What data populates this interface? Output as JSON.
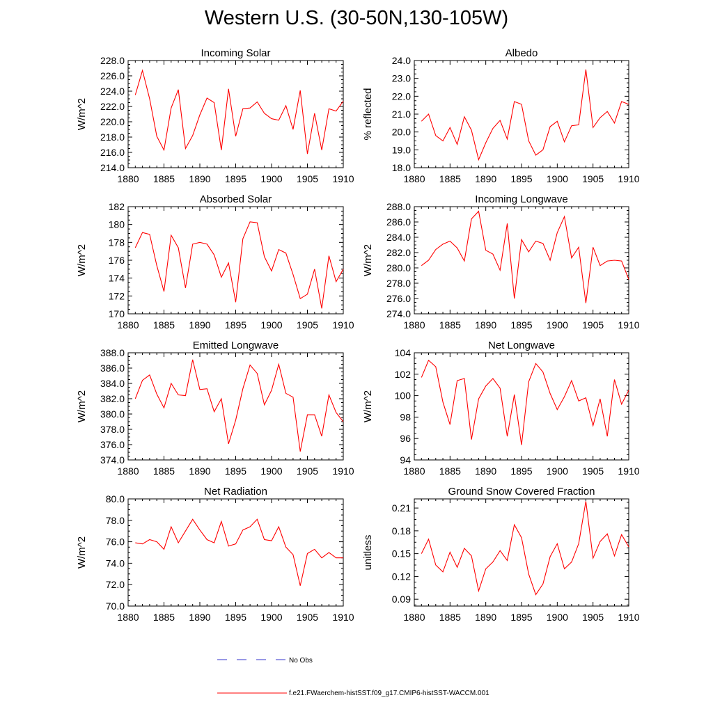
{
  "title": "Western U.S. (30-50N,130-105W)",
  "legend": {
    "entries": [
      {
        "label": "No Obs",
        "color": "#3333cc",
        "style": "dashed"
      },
      {
        "label": "f.e21.FWaerchem-histSST.f09_g17.CMIP6-histSST-WACCM.001",
        "color": "#ff0000",
        "style": "solid"
      }
    ]
  },
  "chart_data": [
    {
      "type": "line",
      "title": "Incoming Solar",
      "xlabel": "",
      "ylabel": "W/m^2",
      "xlim": [
        1880,
        1910
      ],
      "xticks": [
        "1880",
        "1885",
        "1890",
        "1895",
        "1900",
        "1905",
        "1910"
      ],
      "ylim": [
        214,
        228
      ],
      "yticks": [
        "214.0",
        "216.0",
        "218.0",
        "220.0",
        "222.0",
        "224.0",
        "226.0",
        "228.0"
      ],
      "color": "#ff0000",
      "x": [
        1881,
        1882,
        1883,
        1884,
        1885,
        1886,
        1887,
        1888,
        1889,
        1890,
        1891,
        1892,
        1893,
        1894,
        1895,
        1896,
        1897,
        1898,
        1899,
        1900,
        1901,
        1902,
        1903,
        1904,
        1905,
        1906,
        1907,
        1908,
        1909,
        1910
      ],
      "y": [
        223.5,
        226.7,
        223.0,
        218.1,
        216.3,
        221.8,
        224.2,
        216.5,
        218.2,
        220.9,
        223.1,
        222.5,
        216.3,
        224.3,
        218.1,
        221.7,
        221.8,
        222.6,
        221.1,
        220.4,
        220.2,
        222.1,
        219.0,
        224.1,
        215.8,
        221.1,
        216.3,
        221.7,
        221.4,
        222.7
      ]
    },
    {
      "type": "line",
      "title": "Albedo",
      "xlabel": "",
      "ylabel": "% reflected",
      "xlim": [
        1880,
        1910
      ],
      "xticks": [
        "1880",
        "1885",
        "1890",
        "1895",
        "1900",
        "1905",
        "1910"
      ],
      "ylim": [
        18,
        24
      ],
      "yticks": [
        "18.0",
        "19.0",
        "20.0",
        "21.0",
        "22.0",
        "23.0",
        "24.0"
      ],
      "color": "#ff0000",
      "x": [
        1881,
        1882,
        1883,
        1884,
        1885,
        1886,
        1887,
        1888,
        1889,
        1890,
        1891,
        1892,
        1893,
        1894,
        1895,
        1896,
        1897,
        1898,
        1899,
        1900,
        1901,
        1902,
        1903,
        1904,
        1905,
        1906,
        1907,
        1908,
        1909,
        1910
      ],
      "y": [
        20.6,
        21.0,
        19.8,
        19.5,
        20.25,
        19.3,
        20.85,
        20.1,
        18.45,
        19.4,
        20.2,
        20.65,
        19.6,
        21.7,
        21.55,
        19.5,
        18.7,
        19.0,
        20.3,
        20.6,
        19.45,
        20.35,
        20.4,
        23.5,
        20.25,
        20.8,
        21.15,
        20.5,
        21.7,
        21.55
      ]
    },
    {
      "type": "line",
      "title": "Absorbed Solar",
      "xlabel": "",
      "ylabel": "W/m^2",
      "xlim": [
        1880,
        1910
      ],
      "xticks": [
        "1880",
        "1885",
        "1890",
        "1895",
        "1900",
        "1905",
        "1910"
      ],
      "ylim": [
        170,
        182
      ],
      "yticks": [
        "170",
        "172",
        "174",
        "176",
        "178",
        "180",
        "182"
      ],
      "color": "#ff0000",
      "x": [
        1881,
        1882,
        1883,
        1884,
        1885,
        1886,
        1887,
        1888,
        1889,
        1890,
        1891,
        1892,
        1893,
        1894,
        1895,
        1896,
        1897,
        1898,
        1899,
        1900,
        1901,
        1902,
        1903,
        1904,
        1905,
        1906,
        1907,
        1908,
        1909,
        1910
      ],
      "y": [
        177.4,
        179.1,
        178.9,
        175.4,
        172.5,
        178.8,
        177.4,
        172.9,
        177.8,
        178.0,
        177.8,
        176.6,
        174.1,
        175.7,
        171.3,
        178.4,
        180.3,
        180.2,
        176.4,
        174.8,
        177.2,
        176.8,
        174.4,
        171.7,
        172.2,
        175.0,
        170.6,
        176.5,
        173.6,
        175.0
      ]
    },
    {
      "type": "line",
      "title": "Incoming Longwave",
      "xlabel": "",
      "ylabel": "W/m^2",
      "xlim": [
        1880,
        1910
      ],
      "xticks": [
        "1880",
        "1885",
        "1890",
        "1895",
        "1900",
        "1905",
        "1910"
      ],
      "ylim": [
        274,
        288
      ],
      "yticks": [
        "274.0",
        "276.0",
        "278.0",
        "280.0",
        "282.0",
        "284.0",
        "286.0",
        "288.0"
      ],
      "color": "#ff0000",
      "x": [
        1881,
        1882,
        1883,
        1884,
        1885,
        1886,
        1887,
        1888,
        1889,
        1890,
        1891,
        1892,
        1893,
        1894,
        1895,
        1896,
        1897,
        1898,
        1899,
        1900,
        1901,
        1902,
        1903,
        1904,
        1905,
        1906,
        1907,
        1908,
        1909,
        1910
      ],
      "y": [
        280.3,
        281.0,
        282.4,
        283.1,
        283.5,
        282.6,
        280.9,
        286.4,
        287.4,
        282.3,
        281.8,
        279.7,
        285.8,
        276.0,
        283.7,
        282.1,
        283.5,
        283.2,
        281.0,
        284.6,
        286.7,
        281.3,
        282.7,
        275.4,
        282.7,
        280.3,
        280.9,
        281.0,
        280.9,
        278.5
      ]
    },
    {
      "type": "line",
      "title": "Emitted Longwave",
      "xlabel": "",
      "ylabel": "W/m^2",
      "xlim": [
        1880,
        1910
      ],
      "xticks": [
        "1880",
        "1885",
        "1890",
        "1895",
        "1900",
        "1905",
        "1910"
      ],
      "ylim": [
        374,
        388
      ],
      "yticks": [
        "374.0",
        "376.0",
        "378.0",
        "380.0",
        "382.0",
        "384.0",
        "386.0",
        "388.0"
      ],
      "color": "#ff0000",
      "x": [
        1881,
        1882,
        1883,
        1884,
        1885,
        1886,
        1887,
        1888,
        1889,
        1890,
        1891,
        1892,
        1893,
        1894,
        1895,
        1896,
        1897,
        1898,
        1899,
        1900,
        1901,
        1902,
        1903,
        1904,
        1905,
        1906,
        1907,
        1908,
        1909,
        1910
      ],
      "y": [
        382.0,
        384.4,
        385.1,
        382.6,
        380.8,
        384.0,
        382.5,
        382.4,
        387.1,
        383.2,
        383.3,
        380.3,
        382.0,
        376.1,
        379.2,
        383.3,
        386.4,
        385.3,
        381.2,
        383.1,
        386.5,
        382.7,
        382.2,
        375.1,
        379.9,
        379.9,
        377.1,
        382.5,
        380.2,
        379.0
      ]
    },
    {
      "type": "line",
      "title": "Net Longwave",
      "xlabel": "",
      "ylabel": "W/m^2",
      "xlim": [
        1880,
        1910
      ],
      "xticks": [
        "1880",
        "1885",
        "1890",
        "1895",
        "1900",
        "1905",
        "1910"
      ],
      "ylim": [
        94,
        104
      ],
      "yticks": [
        "94",
        "96",
        "98",
        "100",
        "102",
        "104"
      ],
      "color": "#ff0000",
      "x": [
        1881,
        1882,
        1883,
        1884,
        1885,
        1886,
        1887,
        1888,
        1889,
        1890,
        1891,
        1892,
        1893,
        1894,
        1895,
        1896,
        1897,
        1898,
        1899,
        1900,
        1901,
        1902,
        1903,
        1904,
        1905,
        1906,
        1907,
        1908,
        1909,
        1910
      ],
      "y": [
        101.7,
        103.3,
        102.7,
        99.4,
        97.3,
        101.4,
        101.6,
        95.9,
        99.7,
        100.9,
        101.6,
        100.7,
        96.2,
        100.1,
        95.4,
        101.3,
        103.0,
        102.2,
        100.2,
        98.7,
        99.9,
        101.4,
        99.5,
        99.8,
        97.2,
        99.7,
        96.2,
        101.5,
        99.2,
        100.5
      ]
    },
    {
      "type": "line",
      "title": "Net Radiation",
      "xlabel": "",
      "ylabel": "W/m^2",
      "xlim": [
        1880,
        1910
      ],
      "xticks": [
        "1880",
        "1885",
        "1890",
        "1895",
        "1900",
        "1905",
        "1910"
      ],
      "ylim": [
        70,
        80
      ],
      "yticks": [
        "70.0",
        "72.0",
        "74.0",
        "76.0",
        "78.0",
        "80.0"
      ],
      "color": "#ff0000",
      "x": [
        1881,
        1882,
        1883,
        1884,
        1885,
        1886,
        1887,
        1888,
        1889,
        1890,
        1891,
        1892,
        1893,
        1894,
        1895,
        1896,
        1897,
        1898,
        1899,
        1900,
        1901,
        1902,
        1903,
        1904,
        1905,
        1906,
        1907,
        1908,
        1909,
        1910
      ],
      "y": [
        75.9,
        75.8,
        76.2,
        76.0,
        75.3,
        77.4,
        75.9,
        77.0,
        78.1,
        77.1,
        76.2,
        75.9,
        77.9,
        75.6,
        75.8,
        77.1,
        77.4,
        78.1,
        76.2,
        76.1,
        77.4,
        75.5,
        74.8,
        71.9,
        74.9,
        75.3,
        74.5,
        75.0,
        74.5,
        74.5
      ]
    },
    {
      "type": "line",
      "title": "Ground Snow Covered Fraction",
      "xlabel": "",
      "ylabel": "unitless",
      "xlim": [
        1880,
        1910
      ],
      "xticks": [
        "1880",
        "1885",
        "1890",
        "1895",
        "1900",
        "1905",
        "1910"
      ],
      "ylim": [
        0.081,
        0.222
      ],
      "yticks": [
        "0.09",
        "0.12",
        "0.15",
        "0.18",
        "0.21"
      ],
      "ytick_values": [
        0.09,
        0.12,
        0.15,
        0.18,
        0.21
      ],
      "color": "#ff0000",
      "x": [
        1881,
        1882,
        1883,
        1884,
        1885,
        1886,
        1887,
        1888,
        1889,
        1890,
        1891,
        1892,
        1893,
        1894,
        1895,
        1896,
        1897,
        1898,
        1899,
        1900,
        1901,
        1902,
        1903,
        1904,
        1905,
        1906,
        1907,
        1908,
        1909,
        1910
      ],
      "y": [
        0.15,
        0.169,
        0.135,
        0.126,
        0.152,
        0.132,
        0.157,
        0.147,
        0.101,
        0.13,
        0.139,
        0.154,
        0.141,
        0.188,
        0.171,
        0.123,
        0.096,
        0.11,
        0.146,
        0.163,
        0.13,
        0.139,
        0.163,
        0.219,
        0.144,
        0.166,
        0.176,
        0.147,
        0.175,
        0.159
      ]
    }
  ]
}
